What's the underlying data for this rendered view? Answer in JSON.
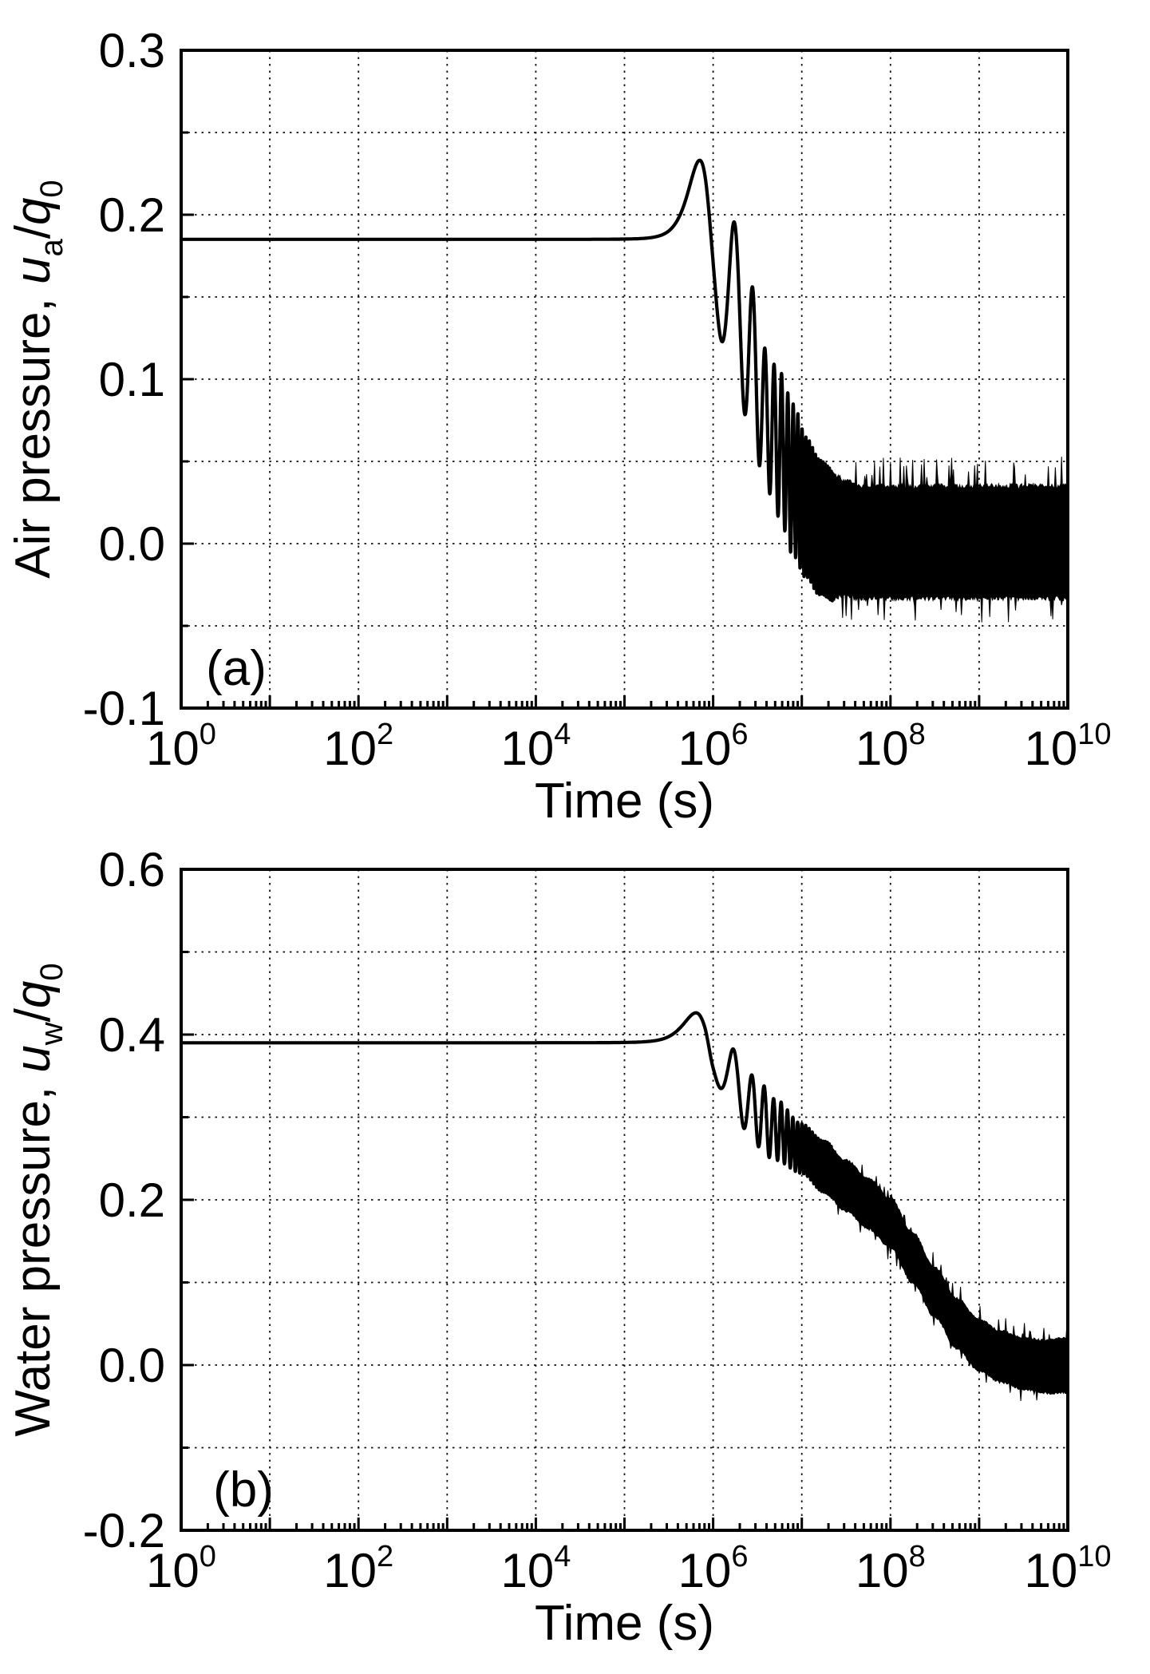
{
  "figure": {
    "background": "#ffffff",
    "line_color": "#000000",
    "grid_color": "#111111"
  },
  "chart_data": [
    {
      "type": "line",
      "panel_label": "(a)",
      "xlabel": "Time (s)",
      "ylabel_plain": "Air pressure, ua/q0",
      "ylabel_parts": [
        {
          "text": "Air pressure, ",
          "style": "normal"
        },
        {
          "text": "u",
          "style": "italic"
        },
        {
          "text": "a",
          "style": "sub"
        },
        {
          "text": "/",
          "style": "normal"
        },
        {
          "text": "q",
          "style": "italic"
        },
        {
          "text": "0",
          "style": "sub"
        }
      ],
      "xscale": "log",
      "xlim_exp": [
        0,
        10
      ],
      "ylim": [
        -0.1,
        0.3
      ],
      "grid": "dotted",
      "legend": "none",
      "x_tick_labels": [
        {
          "s": 0,
          "base": "10",
          "exp": "0"
        },
        {
          "s": 2,
          "base": "10",
          "exp": "2"
        },
        {
          "s": 4,
          "base": "10",
          "exp": "4"
        },
        {
          "s": 6,
          "base": "10",
          "exp": "6"
        },
        {
          "s": 8,
          "base": "10",
          "exp": "8"
        },
        {
          "s": 10,
          "base": "10",
          "exp": "10"
        }
      ],
      "y_tick_labels": [
        {
          "v": 0.3,
          "t": "0.3"
        },
        {
          "v": 0.2,
          "t": "0.2"
        },
        {
          "v": 0.1,
          "t": "0.1"
        },
        {
          "v": 0.0,
          "t": "0.0"
        },
        {
          "v": -0.1,
          "t": "-0.1"
        }
      ],
      "y_major_step": 0.1,
      "y_grid_step": 0.05,
      "initial_value": 0.185,
      "peak": {
        "log_t": 5.85,
        "value": 0.235
      },
      "oscillation_period_s": 1040000,
      "gauss_rise_frac": 0.25,
      "band_start_exp": 7.35,
      "band_bottom_factor": 0.95,
      "final_band": {
        "center": 0.0,
        "half_width": 0.035
      },
      "spike_seed": 11,
      "mean_knots": [
        [
          0,
          0.185
        ],
        [
          5.55,
          0.185
        ],
        [
          5.9,
          0.183
        ],
        [
          6.0,
          0.18
        ],
        [
          6.2,
          0.155
        ],
        [
          6.4,
          0.118
        ],
        [
          6.6,
          0.0755
        ],
        [
          6.75,
          0.06
        ],
        [
          6.9,
          0.039
        ],
        [
          7.05,
          0.022
        ],
        [
          7.2,
          0.01
        ],
        [
          7.4,
          0.003
        ],
        [
          7.7,
          0.0
        ],
        [
          10,
          0.0
        ]
      ],
      "envelope_knots": [
        [
          0,
          0.05
        ],
        [
          5.87,
          0.05
        ],
        [
          6.1,
          0.0455
        ],
        [
          6.3,
          0.044
        ],
        [
          6.6,
          0.0425
        ],
        [
          6.9,
          0.046
        ],
        [
          7.1,
          0.042
        ],
        [
          7.3,
          0.04
        ],
        [
          7.5,
          0.036
        ],
        [
          7.7,
          0.035
        ],
        [
          10,
          0.035
        ]
      ]
    },
    {
      "type": "line",
      "panel_label": "(b)",
      "xlabel": "Time (s)",
      "ylabel_plain": "Water pressure, uw/q0",
      "ylabel_parts": [
        {
          "text": "Water pressure, ",
          "style": "normal"
        },
        {
          "text": "u",
          "style": "italic"
        },
        {
          "text": "w",
          "style": "sub"
        },
        {
          "text": "/",
          "style": "normal"
        },
        {
          "text": "q",
          "style": "italic"
        },
        {
          "text": "0",
          "style": "sub"
        }
      ],
      "xscale": "log",
      "xlim_exp": [
        0,
        10
      ],
      "ylim": [
        -0.2,
        0.6
      ],
      "grid": "dotted",
      "legend": "none",
      "x_tick_labels": [
        {
          "s": 0,
          "base": "10",
          "exp": "0"
        },
        {
          "s": 2,
          "base": "10",
          "exp": "2"
        },
        {
          "s": 4,
          "base": "10",
          "exp": "4"
        },
        {
          "s": 6,
          "base": "10",
          "exp": "6"
        },
        {
          "s": 8,
          "base": "10",
          "exp": "8"
        },
        {
          "s": 10,
          "base": "10",
          "exp": "10"
        }
      ],
      "y_tick_labels": [
        {
          "v": 0.6,
          "t": "0.6"
        },
        {
          "v": 0.4,
          "t": "0.4"
        },
        {
          "v": 0.2,
          "t": "0.2"
        },
        {
          "v": 0.0,
          "t": "0.0"
        },
        {
          "v": -0.2,
          "t": "-0.2"
        }
      ],
      "y_major_step": 0.2,
      "y_grid_step": 0.1,
      "initial_value": 0.39,
      "peak": {
        "log_t": 5.81,
        "value": 0.428
      },
      "oscillation_period_s": 1040000,
      "gauss_rise_frac": 0.25,
      "band_start_exp": 7.35,
      "band_bottom_factor": 1.0,
      "final_band": {
        "center": 0.0,
        "half_width": 0.033
      },
      "spike_seed": 29,
      "mean_knots": [
        [
          0,
          0.39
        ],
        [
          5.55,
          0.39
        ],
        [
          5.9,
          0.388
        ],
        [
          6.0,
          0.378
        ],
        [
          6.2,
          0.348
        ],
        [
          6.45,
          0.31
        ],
        [
          6.7,
          0.285
        ],
        [
          7.0,
          0.262
        ],
        [
          7.25,
          0.24
        ],
        [
          7.5,
          0.217
        ],
        [
          7.75,
          0.195
        ],
        [
          8.0,
          0.172
        ],
        [
          8.25,
          0.13
        ],
        [
          8.5,
          0.088
        ],
        [
          8.75,
          0.05
        ],
        [
          9.0,
          0.024
        ],
        [
          9.25,
          0.01
        ],
        [
          9.5,
          0.002
        ],
        [
          9.75,
          -0.002
        ],
        [
          10,
          0.0
        ]
      ],
      "envelope_knots": [
        [
          0,
          0.038
        ],
        [
          5.81,
          0.038
        ],
        [
          6.1,
          0.033
        ],
        [
          6.3,
          0.037
        ],
        [
          6.5,
          0.042
        ],
        [
          6.7,
          0.037
        ],
        [
          7.0,
          0.03
        ],
        [
          7.35,
          0.031
        ],
        [
          8.0,
          0.03
        ],
        [
          8.5,
          0.03
        ],
        [
          9.0,
          0.031
        ],
        [
          9.5,
          0.031
        ],
        [
          10,
          0.033
        ]
      ]
    }
  ]
}
